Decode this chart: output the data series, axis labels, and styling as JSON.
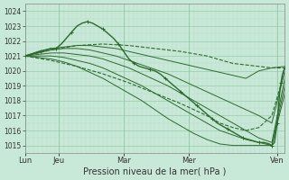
{
  "bg_color": "#c8e8d8",
  "grid_color_major": "#99ccaa",
  "grid_color_minor": "#b8ddc8",
  "line_color": "#2d6a2d",
  "xlabel": "Pression niveau de la mer( hPa )",
  "ylim": [
    1014.5,
    1024.5
  ],
  "yticks": [
    1015,
    1016,
    1017,
    1018,
    1019,
    1020,
    1021,
    1022,
    1023,
    1024
  ],
  "xtick_labels": [
    "Lun",
    "Jeu",
    "Mar",
    "Mer",
    "Ven"
  ],
  "xtick_positions": [
    0.0,
    0.13,
    0.38,
    0.63,
    0.97
  ],
  "series": [
    {
      "style": "solid",
      "marker": null,
      "lw": 0.7,
      "points": [
        [
          0,
          1021.0
        ],
        [
          0.05,
          1021.3
        ],
        [
          0.1,
          1021.5
        ],
        [
          0.15,
          1021.6
        ],
        [
          0.2,
          1021.7
        ],
        [
          0.25,
          1021.7
        ],
        [
          0.3,
          1021.6
        ],
        [
          0.35,
          1021.5
        ],
        [
          0.4,
          1021.3
        ],
        [
          0.45,
          1021.1
        ],
        [
          0.5,
          1020.9
        ],
        [
          0.55,
          1020.7
        ],
        [
          0.6,
          1020.5
        ],
        [
          0.65,
          1020.3
        ],
        [
          0.7,
          1020.1
        ],
        [
          0.75,
          1019.9
        ],
        [
          0.8,
          1019.7
        ],
        [
          0.85,
          1019.5
        ],
        [
          0.9,
          1020.0
        ],
        [
          0.95,
          1020.2
        ],
        [
          1.0,
          1020.3
        ]
      ]
    },
    {
      "style": "solid",
      "marker": null,
      "lw": 0.7,
      "points": [
        [
          0,
          1021.0
        ],
        [
          0.05,
          1021.2
        ],
        [
          0.1,
          1021.4
        ],
        [
          0.15,
          1021.5
        ],
        [
          0.2,
          1021.5
        ],
        [
          0.25,
          1021.4
        ],
        [
          0.3,
          1021.2
        ],
        [
          0.35,
          1021.0
        ],
        [
          0.4,
          1020.7
        ],
        [
          0.45,
          1020.4
        ],
        [
          0.5,
          1020.1
        ],
        [
          0.55,
          1019.8
        ],
        [
          0.6,
          1019.4
        ],
        [
          0.65,
          1019.0
        ],
        [
          0.7,
          1018.6
        ],
        [
          0.75,
          1018.2
        ],
        [
          0.8,
          1017.8
        ],
        [
          0.85,
          1017.4
        ],
        [
          0.9,
          1017.0
        ],
        [
          0.95,
          1016.5
        ],
        [
          1.0,
          1020.0
        ]
      ]
    },
    {
      "style": "solid",
      "marker": null,
      "lw": 0.7,
      "points": [
        [
          0,
          1021.0
        ],
        [
          0.05,
          1021.1
        ],
        [
          0.1,
          1021.2
        ],
        [
          0.15,
          1021.2
        ],
        [
          0.2,
          1021.1
        ],
        [
          0.25,
          1021.0
        ],
        [
          0.3,
          1020.8
        ],
        [
          0.35,
          1020.5
        ],
        [
          0.4,
          1020.2
        ],
        [
          0.45,
          1019.8
        ],
        [
          0.5,
          1019.4
        ],
        [
          0.55,
          1019.0
        ],
        [
          0.6,
          1018.5
        ],
        [
          0.65,
          1018.0
        ],
        [
          0.7,
          1017.5
        ],
        [
          0.75,
          1017.0
        ],
        [
          0.8,
          1016.5
        ],
        [
          0.85,
          1016.0
        ],
        [
          0.9,
          1015.5
        ],
        [
          0.95,
          1015.2
        ],
        [
          1.0,
          1019.5
        ]
      ]
    },
    {
      "style": "solid",
      "marker": null,
      "lw": 0.7,
      "points": [
        [
          0,
          1021.0
        ],
        [
          0.05,
          1021.0
        ],
        [
          0.1,
          1021.0
        ],
        [
          0.15,
          1020.9
        ],
        [
          0.2,
          1020.7
        ],
        [
          0.25,
          1020.5
        ],
        [
          0.3,
          1020.2
        ],
        [
          0.35,
          1019.8
        ],
        [
          0.4,
          1019.4
        ],
        [
          0.45,
          1019.0
        ],
        [
          0.5,
          1018.5
        ],
        [
          0.55,
          1018.0
        ],
        [
          0.6,
          1017.5
        ],
        [
          0.65,
          1017.0
        ],
        [
          0.7,
          1016.5
        ],
        [
          0.75,
          1016.0
        ],
        [
          0.8,
          1015.7
        ],
        [
          0.85,
          1015.4
        ],
        [
          0.9,
          1015.2
        ],
        [
          0.95,
          1015.0
        ],
        [
          1.0,
          1019.0
        ]
      ]
    },
    {
      "style": "solid",
      "marker": null,
      "lw": 0.7,
      "points": [
        [
          0,
          1021.0
        ],
        [
          0.05,
          1020.9
        ],
        [
          0.1,
          1020.8
        ],
        [
          0.15,
          1020.6
        ],
        [
          0.2,
          1020.3
        ],
        [
          0.25,
          1019.9
        ],
        [
          0.3,
          1019.5
        ],
        [
          0.35,
          1019.0
        ],
        [
          0.4,
          1018.5
        ],
        [
          0.45,
          1018.0
        ],
        [
          0.5,
          1017.4
        ],
        [
          0.55,
          1016.8
        ],
        [
          0.6,
          1016.3
        ],
        [
          0.65,
          1015.8
        ],
        [
          0.7,
          1015.4
        ],
        [
          0.75,
          1015.1
        ],
        [
          0.8,
          1015.0
        ],
        [
          0.85,
          1015.0
        ],
        [
          0.9,
          1015.0
        ],
        [
          0.95,
          1015.0
        ],
        [
          1.0,
          1018.5
        ]
      ]
    },
    {
      "style": "dashed",
      "marker": null,
      "lw": 0.8,
      "points": [
        [
          0,
          1021.0
        ],
        [
          0.1,
          1021.4
        ],
        [
          0.2,
          1021.7
        ],
        [
          0.3,
          1021.8
        ],
        [
          0.4,
          1021.7
        ],
        [
          0.5,
          1021.5
        ],
        [
          0.6,
          1021.3
        ],
        [
          0.7,
          1021.0
        ],
        [
          0.8,
          1020.5
        ],
        [
          0.9,
          1020.3
        ],
        [
          0.95,
          1020.2
        ],
        [
          1.0,
          1020.2
        ]
      ]
    },
    {
      "style": "dashed",
      "marker": null,
      "lw": 0.8,
      "points": [
        [
          0,
          1021.0
        ],
        [
          0.1,
          1020.7
        ],
        [
          0.2,
          1020.3
        ],
        [
          0.3,
          1019.8
        ],
        [
          0.4,
          1019.2
        ],
        [
          0.5,
          1018.5
        ],
        [
          0.6,
          1017.8
        ],
        [
          0.7,
          1017.0
        ],
        [
          0.75,
          1016.5
        ],
        [
          0.8,
          1016.2
        ],
        [
          0.85,
          1016.0
        ],
        [
          0.9,
          1016.2
        ],
        [
          0.95,
          1017.0
        ],
        [
          1.0,
          1020.0
        ]
      ]
    },
    {
      "style": "solid",
      "marker": "+",
      "lw": 1.0,
      "points": [
        [
          0,
          1021.0
        ],
        [
          0.02,
          1021.1
        ],
        [
          0.04,
          1021.2
        ],
        [
          0.06,
          1021.3
        ],
        [
          0.08,
          1021.4
        ],
        [
          0.1,
          1021.5
        ],
        [
          0.12,
          1021.5
        ],
        [
          0.14,
          1021.8
        ],
        [
          0.16,
          1022.2
        ],
        [
          0.18,
          1022.6
        ],
        [
          0.2,
          1023.0
        ],
        [
          0.22,
          1023.2
        ],
        [
          0.24,
          1023.3
        ],
        [
          0.26,
          1023.2
        ],
        [
          0.28,
          1023.0
        ],
        [
          0.3,
          1022.8
        ],
        [
          0.32,
          1022.5
        ],
        [
          0.34,
          1022.2
        ],
        [
          0.36,
          1021.8
        ],
        [
          0.38,
          1021.3
        ],
        [
          0.4,
          1020.8
        ],
        [
          0.42,
          1020.5
        ],
        [
          0.44,
          1020.3
        ],
        [
          0.46,
          1020.2
        ],
        [
          0.48,
          1020.1
        ],
        [
          0.5,
          1020.0
        ],
        [
          0.52,
          1019.8
        ],
        [
          0.54,
          1019.5
        ],
        [
          0.56,
          1019.2
        ],
        [
          0.58,
          1018.9
        ],
        [
          0.6,
          1018.6
        ],
        [
          0.62,
          1018.3
        ],
        [
          0.64,
          1018.0
        ],
        [
          0.66,
          1017.7
        ],
        [
          0.68,
          1017.4
        ],
        [
          0.7,
          1017.1
        ],
        [
          0.72,
          1016.8
        ],
        [
          0.74,
          1016.5
        ],
        [
          0.76,
          1016.3
        ],
        [
          0.78,
          1016.1
        ],
        [
          0.8,
          1015.9
        ],
        [
          0.82,
          1015.7
        ],
        [
          0.84,
          1015.5
        ],
        [
          0.86,
          1015.4
        ],
        [
          0.88,
          1015.3
        ],
        [
          0.9,
          1015.2
        ],
        [
          0.92,
          1015.2
        ],
        [
          0.94,
          1015.1
        ],
        [
          0.95,
          1015.0
        ],
        [
          0.96,
          1015.2
        ],
        [
          0.965,
          1015.8
        ],
        [
          0.97,
          1016.5
        ],
        [
          0.975,
          1017.5
        ],
        [
          0.98,
          1018.5
        ],
        [
          0.985,
          1019.2
        ],
        [
          0.99,
          1019.7
        ],
        [
          0.995,
          1020.0
        ],
        [
          1.0,
          1020.2
        ]
      ]
    }
  ]
}
